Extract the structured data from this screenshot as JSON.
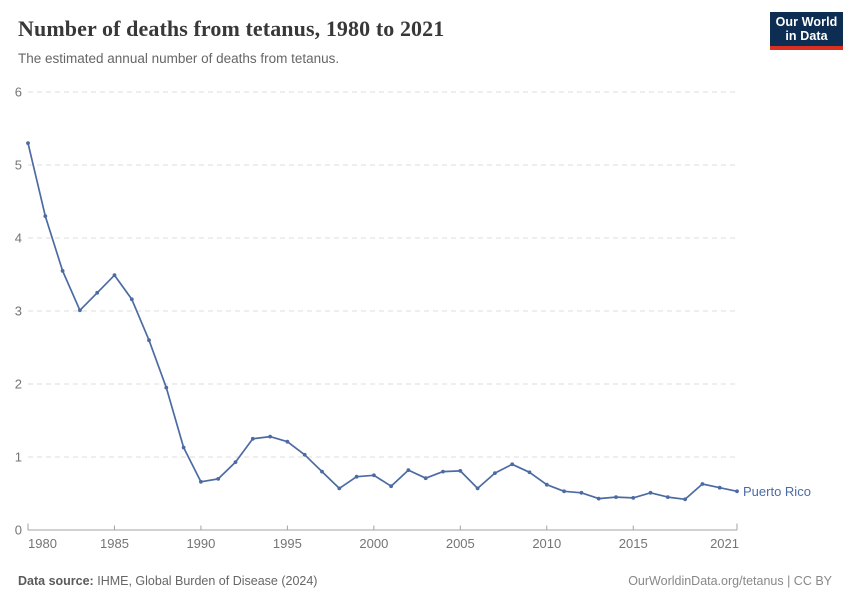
{
  "header": {
    "title": "Number of deaths from tetanus, 1980 to 2021",
    "subtitle": "The estimated annual number of deaths from tetanus.",
    "logo": {
      "line1": "Our World",
      "line2": "in Data"
    }
  },
  "chart_data": {
    "type": "line",
    "title": "Number of deaths from tetanus, 1980 to 2021",
    "xlabel": "",
    "ylabel": "",
    "x": [
      1980,
      1981,
      1982,
      1983,
      1984,
      1985,
      1986,
      1987,
      1988,
      1989,
      1990,
      1991,
      1992,
      1993,
      1994,
      1995,
      1996,
      1997,
      1998,
      1999,
      2000,
      2001,
      2002,
      2003,
      2004,
      2005,
      2006,
      2007,
      2008,
      2009,
      2010,
      2011,
      2012,
      2013,
      2014,
      2015,
      2016,
      2017,
      2018,
      2019,
      2020,
      2021
    ],
    "series": [
      {
        "name": "Puerto Rico",
        "color": "#4c6ba3",
        "values": [
          5.3,
          4.3,
          3.55,
          3.01,
          3.25,
          3.49,
          3.16,
          2.6,
          1.95,
          1.13,
          0.66,
          0.7,
          0.93,
          1.25,
          1.28,
          1.21,
          1.03,
          0.8,
          0.57,
          0.73,
          0.75,
          0.6,
          0.82,
          0.71,
          0.8,
          0.81,
          0.57,
          0.78,
          0.9,
          0.79,
          0.62,
          0.53,
          0.51,
          0.43,
          0.45,
          0.44,
          0.51,
          0.45,
          0.42,
          0.63,
          0.58,
          0.53
        ]
      }
    ],
    "ylim": [
      0,
      6
    ],
    "yticks": [
      0,
      1,
      2,
      3,
      4,
      5,
      6
    ],
    "xticks": [
      1980,
      1985,
      1990,
      1995,
      2000,
      2005,
      2010,
      2015,
      2021
    ],
    "grid": "horizontal-dashed",
    "legend": "line-end-label"
  },
  "footer": {
    "source_label": "Data source:",
    "source_text": "IHME, Global Burden of Disease (2024)",
    "credit": "OurWorldinData.org/tetanus | CC BY"
  },
  "colors": {
    "line": "#4c6ba3",
    "gridline": "#dcdcdc",
    "axis_line": "#a3a3a3",
    "axis_text": "#757575",
    "logo_bg": "#0d2e52",
    "logo_red": "#dc2f1f"
  }
}
